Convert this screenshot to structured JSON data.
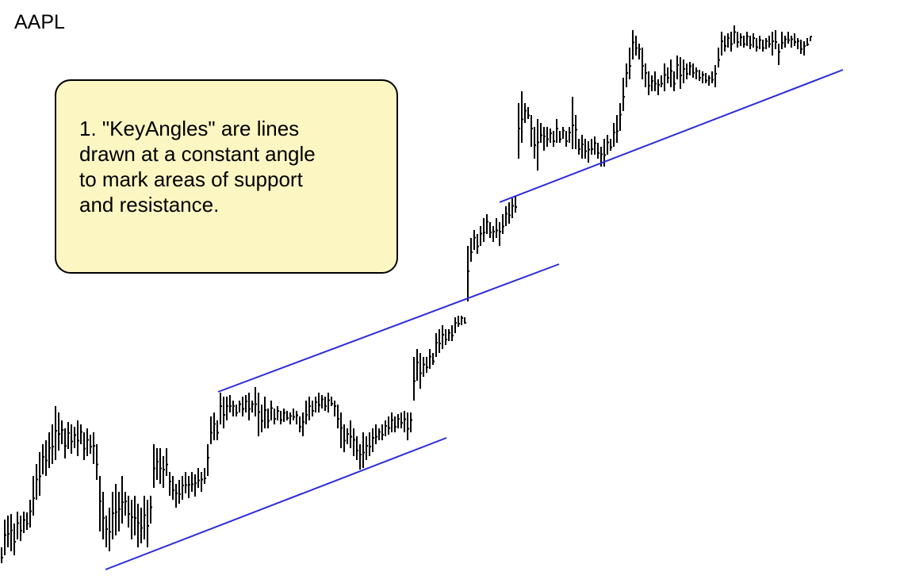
{
  "chart_data": {
    "type": "ohlc",
    "title": "AAPL",
    "xlabel": "",
    "ylabel": "",
    "bar_color": "#000000",
    "line_color": "#2b2bd9",
    "bars": [
      [
        0,
        690,
        710
      ],
      [
        4,
        655,
        700
      ],
      [
        8,
        650,
        690
      ],
      [
        12,
        648,
        695
      ],
      [
        16,
        660,
        700
      ],
      [
        20,
        645,
        680
      ],
      [
        24,
        650,
        682
      ],
      [
        28,
        645,
        672
      ],
      [
        32,
        646,
        668
      ],
      [
        36,
        630,
        665
      ],
      [
        40,
        600,
        650
      ],
      [
        44,
        585,
        630
      ],
      [
        48,
        570,
        625
      ],
      [
        52,
        560,
        598
      ],
      [
        56,
        555,
        600
      ],
      [
        60,
        545,
        590
      ],
      [
        64,
        535,
        585
      ],
      [
        68,
        512,
        580
      ],
      [
        72,
        520,
        568
      ],
      [
        76,
        530,
        560
      ],
      [
        80,
        540,
        578
      ],
      [
        84,
        532,
        566
      ],
      [
        88,
        535,
        572
      ],
      [
        92,
        538,
        565
      ],
      [
        96,
        530,
        575
      ],
      [
        100,
        535,
        560
      ],
      [
        104,
        545,
        580
      ],
      [
        108,
        540,
        575
      ],
      [
        112,
        548,
        572
      ],
      [
        116,
        545,
        585
      ],
      [
        120,
        560,
        605
      ],
      [
        124,
        600,
        670
      ],
      [
        128,
        620,
        680
      ],
      [
        132,
        650,
        690
      ],
      [
        136,
        640,
        695
      ],
      [
        140,
        620,
        680
      ],
      [
        144,
        610,
        675
      ],
      [
        148,
        620,
        670
      ],
      [
        152,
        600,
        660
      ],
      [
        156,
        620,
        650
      ],
      [
        160,
        625,
        665
      ],
      [
        164,
        630,
        680
      ],
      [
        168,
        625,
        675
      ],
      [
        172,
        635,
        690
      ],
      [
        176,
        640,
        685
      ],
      [
        180,
        625,
        680
      ],
      [
        184,
        630,
        690
      ],
      [
        188,
        625,
        660
      ],
      [
        192,
        560,
        615
      ],
      [
        196,
        565,
        605
      ],
      [
        200,
        565,
        610
      ],
      [
        204,
        575,
        615
      ],
      [
        208,
        565,
        600
      ],
      [
        212,
        595,
        625
      ],
      [
        216,
        600,
        630
      ],
      [
        220,
        610,
        640
      ],
      [
        224,
        605,
        635
      ],
      [
        228,
        600,
        630
      ],
      [
        232,
        595,
        622
      ],
      [
        236,
        600,
        628
      ],
      [
        240,
        595,
        620
      ],
      [
        244,
        598,
        626
      ],
      [
        248,
        590,
        615
      ],
      [
        252,
        595,
        620
      ],
      [
        256,
        590,
        610
      ],
      [
        260,
        560,
        600
      ],
      [
        264,
        525,
        560
      ],
      [
        268,
        520,
        555
      ],
      [
        272,
        530,
        555
      ],
      [
        276,
        495,
        535
      ],
      [
        280,
        500,
        540
      ],
      [
        284,
        500,
        530
      ],
      [
        288,
        498,
        520
      ],
      [
        292,
        505,
        525
      ],
      [
        296,
        510,
        525
      ],
      [
        300,
        505,
        520
      ],
      [
        304,
        500,
        525
      ],
      [
        308,
        498,
        520
      ],
      [
        312,
        495,
        530
      ],
      [
        316,
        505,
        520
      ],
      [
        320,
        488,
        525
      ],
      [
        324,
        495,
        550
      ],
      [
        328,
        510,
        545
      ],
      [
        332,
        500,
        540
      ],
      [
        336,
        515,
        540
      ],
      [
        340,
        505,
        530
      ],
      [
        344,
        515,
        535
      ],
      [
        348,
        512,
        530
      ],
      [
        352,
        518,
        535
      ],
      [
        356,
        515,
        532
      ],
      [
        360,
        518,
        530
      ],
      [
        364,
        520,
        535
      ],
      [
        368,
        515,
        530
      ],
      [
        372,
        518,
        535
      ],
      [
        376,
        525,
        545
      ],
      [
        380,
        520,
        550
      ],
      [
        384,
        505,
        535
      ],
      [
        388,
        500,
        530
      ],
      [
        392,
        505,
        525
      ],
      [
        396,
        500,
        520
      ],
      [
        400,
        495,
        520
      ],
      [
        404,
        498,
        515
      ],
      [
        408,
        500,
        518
      ],
      [
        412,
        495,
        520
      ],
      [
        416,
        500,
        512
      ],
      [
        420,
        505,
        525
      ],
      [
        424,
        510,
        540
      ],
      [
        428,
        520,
        565
      ],
      [
        432,
        535,
        570
      ],
      [
        436,
        540,
        560
      ],
      [
        440,
        530,
        565
      ],
      [
        444,
        540,
        575
      ],
      [
        448,
        550,
        580
      ],
      [
        452,
        560,
        592
      ],
      [
        456,
        545,
        590
      ],
      [
        460,
        550,
        580
      ],
      [
        464,
        545,
        575
      ],
      [
        468,
        540,
        570
      ],
      [
        472,
        535,
        560
      ],
      [
        476,
        540,
        555
      ],
      [
        480,
        535,
        555
      ],
      [
        484,
        530,
        550
      ],
      [
        488,
        525,
        548
      ],
      [
        492,
        520,
        545
      ],
      [
        496,
        525,
        545
      ],
      [
        500,
        522,
        540
      ],
      [
        504,
        520,
        540
      ],
      [
        508,
        518,
        545
      ],
      [
        512,
        520,
        555
      ],
      [
        516,
        520,
        545
      ],
      [
        520,
        450,
        505
      ],
      [
        524,
        440,
        480
      ],
      [
        528,
        445,
        490
      ],
      [
        532,
        450,
        475
      ],
      [
        536,
        450,
        470
      ],
      [
        540,
        440,
        465
      ],
      [
        544,
        445,
        460
      ],
      [
        548,
        420,
        450
      ],
      [
        552,
        415,
        445
      ],
      [
        556,
        410,
        440
      ],
      [
        560,
        415,
        435
      ],
      [
        564,
        415,
        430
      ],
      [
        568,
        410,
        430
      ],
      [
        572,
        400,
        420
      ],
      [
        576,
        398,
        412
      ],
      [
        580,
        398,
        410
      ],
      [
        584,
        400,
        408
      ],
      [
        588,
        310,
        380
      ],
      [
        592,
        300,
        330
      ],
      [
        596,
        290,
        315
      ],
      [
        600,
        295,
        320
      ],
      [
        604,
        285,
        310
      ],
      [
        608,
        275,
        305
      ],
      [
        612,
        270,
        295
      ],
      [
        616,
        280,
        300
      ],
      [
        620,
        285,
        305
      ],
      [
        624,
        275,
        300
      ],
      [
        628,
        280,
        310
      ],
      [
        632,
        270,
        295
      ],
      [
        636,
        260,
        285
      ],
      [
        640,
        255,
        282
      ],
      [
        644,
        250,
        275
      ],
      [
        648,
        248,
        268
      ],
      [
        652,
        130,
        200
      ],
      [
        656,
        115,
        180
      ],
      [
        660,
        130,
        155
      ],
      [
        664,
        135,
        150
      ],
      [
        668,
        145,
        185
      ],
      [
        672,
        160,
        200
      ],
      [
        676,
        150,
        215
      ],
      [
        680,
        155,
        180
      ],
      [
        684,
        160,
        190
      ],
      [
        688,
        160,
        185
      ],
      [
        692,
        162,
        180
      ],
      [
        696,
        165,
        185
      ],
      [
        700,
        150,
        180
      ],
      [
        704,
        165,
        180
      ],
      [
        708,
        160,
        175
      ],
      [
        712,
        165,
        185
      ],
      [
        716,
        160,
        180
      ],
      [
        720,
        122,
        188
      ],
      [
        724,
        145,
        188
      ],
      [
        728,
        175,
        195
      ],
      [
        732,
        170,
        200
      ],
      [
        736,
        175,
        200
      ],
      [
        740,
        178,
        205
      ],
      [
        744,
        175,
        195
      ],
      [
        748,
        172,
        195
      ],
      [
        752,
        180,
        200
      ],
      [
        756,
        185,
        210
      ],
      [
        760,
        175,
        210
      ],
      [
        764,
        170,
        195
      ],
      [
        768,
        175,
        190
      ],
      [
        772,
        155,
        185
      ],
      [
        776,
        145,
        180
      ],
      [
        780,
        130,
        165
      ],
      [
        784,
        98,
        140
      ],
      [
        788,
        80,
        110
      ],
      [
        792,
        60,
        100
      ],
      [
        796,
        38,
        75
      ],
      [
        800,
        45,
        70
      ],
      [
        804,
        55,
        75
      ],
      [
        808,
        60,
        100
      ],
      [
        812,
        80,
        110
      ],
      [
        816,
        90,
        120
      ],
      [
        820,
        95,
        115
      ],
      [
        824,
        90,
        115
      ],
      [
        828,
        100,
        120
      ],
      [
        832,
        95,
        110
      ],
      [
        836,
        80,
        115
      ],
      [
        840,
        85,
        105
      ],
      [
        844,
        75,
        110
      ],
      [
        848,
        90,
        115
      ],
      [
        852,
        70,
        100
      ],
      [
        856,
        72,
        112
      ],
      [
        860,
        75,
        105
      ],
      [
        864,
        80,
        100
      ],
      [
        868,
        78,
        95
      ],
      [
        872,
        80,
        98
      ],
      [
        876,
        85,
        100
      ],
      [
        880,
        88,
        102
      ],
      [
        884,
        90,
        105
      ],
      [
        888,
        92,
        105
      ],
      [
        892,
        95,
        108
      ],
      [
        896,
        90,
        105
      ],
      [
        900,
        82,
        110
      ],
      [
        904,
        60,
        85
      ],
      [
        908,
        40,
        70
      ],
      [
        912,
        45,
        65
      ],
      [
        916,
        42,
        60
      ],
      [
        920,
        40,
        65
      ],
      [
        924,
        32,
        55
      ],
      [
        928,
        40,
        60
      ],
      [
        932,
        42,
        58
      ],
      [
        936,
        45,
        60
      ],
      [
        940,
        40,
        58
      ],
      [
        944,
        45,
        62
      ],
      [
        948,
        42,
        60
      ],
      [
        952,
        48,
        65
      ],
      [
        956,
        45,
        62
      ],
      [
        960,
        50,
        65
      ],
      [
        964,
        48,
        62
      ],
      [
        968,
        45,
        60
      ],
      [
        972,
        40,
        70
      ],
      [
        976,
        38,
        62
      ],
      [
        980,
        55,
        82
      ],
      [
        984,
        40,
        62
      ],
      [
        988,
        45,
        60
      ],
      [
        992,
        40,
        55
      ],
      [
        996,
        45,
        60
      ],
      [
        1000,
        42,
        58
      ],
      [
        1004,
        48,
        62
      ],
      [
        1008,
        50,
        68
      ],
      [
        1012,
        52,
        70
      ],
      [
        1016,
        48,
        58
      ],
      [
        1020,
        46,
        52
      ]
    ],
    "keyangles": [
      [
        133,
        718,
        563,
        552
      ],
      [
        275,
        494,
        705,
        333
      ],
      [
        630,
        255,
        1063,
        88
      ]
    ]
  },
  "labels": {
    "ticker": "AAPL",
    "callout": "1.  \"KeyAngles\" are lines\ndrawn at a constant angle\nto mark areas of support\nand resistance."
  }
}
